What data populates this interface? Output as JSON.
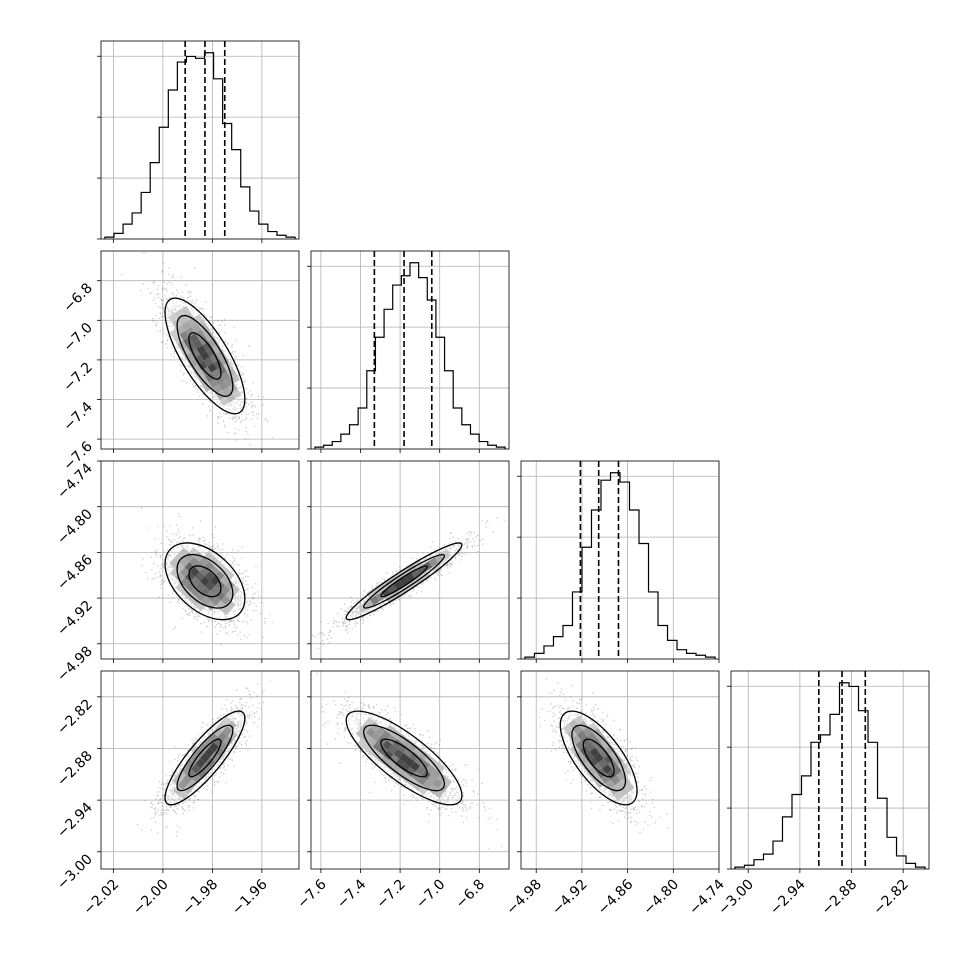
{
  "chart_data": {
    "type": "corner",
    "grid": true,
    "colors": {
      "line": "#000000",
      "grid": "#b0b0b0",
      "points": "#555555"
    },
    "params": [
      {
        "range": [
          -2.025,
          -1.945
        ],
        "ticks": [
          -2.02,
          -2.0,
          -1.98,
          -1.96
        ],
        "tick_labels": [
          "−2.02",
          "−2.00",
          "−1.98",
          "−1.96"
        ],
        "median": -1.983,
        "q16": -1.991,
        "q84": -1.975,
        "hist": [
          1,
          3,
          8,
          14,
          25,
          41,
          60,
          80,
          95,
          98,
          97,
          100,
          86,
          62,
          48,
          28,
          15,
          8,
          4,
          2,
          1
        ],
        "hist_ymax": 100
      },
      {
        "range": [
          -7.65,
          -6.65
        ],
        "ticks": [
          -7.6,
          -7.4,
          -7.2,
          -7.0,
          -6.8
        ],
        "tick_labels": [
          "−7.6",
          "−7.4",
          "−7.2",
          "−7.0",
          "−6.8"
        ],
        "median": -7.18,
        "q16": -7.33,
        "q84": -7.04,
        "hist": [
          1,
          2,
          4,
          8,
          13,
          22,
          42,
          60,
          75,
          88,
          93,
          100,
          92,
          80,
          60,
          42,
          22,
          13,
          8,
          4,
          2,
          1
        ],
        "hist_ymax": 100
      },
      {
        "range": [
          -5.0,
          -4.74
        ],
        "ticks": [
          -4.98,
          -4.92,
          -4.86,
          -4.8,
          -4.74
        ],
        "tick_labels": [
          "−4.98",
          "−4.92",
          "−4.86",
          "−4.80",
          "−4.74"
        ],
        "median": -4.898,
        "q16": -4.922,
        "q84": -4.872,
        "hist": [
          1,
          3,
          7,
          12,
          18,
          36,
          60,
          80,
          96,
          100,
          95,
          80,
          62,
          36,
          18,
          10,
          5,
          3,
          2,
          1
        ],
        "hist_ymax": 100
      },
      {
        "range": [
          -3.02,
          -2.79
        ],
        "ticks": [
          -3.0,
          -2.94,
          -2.88,
          -2.82
        ],
        "tick_labels": [
          "−3.00",
          "−2.94",
          "−2.88",
          "−2.82"
        ],
        "median": -2.891,
        "q16": -2.918,
        "q84": -2.864,
        "hist": [
          1,
          2,
          5,
          8,
          15,
          28,
          40,
          50,
          68,
          72,
          83,
          100,
          98,
          85,
          68,
          38,
          17,
          7,
          3,
          1
        ],
        "hist_ymax": 100
      }
    ],
    "pairs": [
      {
        "x": 0,
        "y": 1,
        "rho": -0.75
      },
      {
        "x": 0,
        "y": 2,
        "rho": -0.45
      },
      {
        "x": 1,
        "y": 2,
        "rho": 0.95
      },
      {
        "x": 0,
        "y": 3,
        "rho": 0.85
      },
      {
        "x": 1,
        "y": 3,
        "rho": -0.8
      },
      {
        "x": 2,
        "y": 3,
        "rho": -0.7
      }
    ]
  }
}
